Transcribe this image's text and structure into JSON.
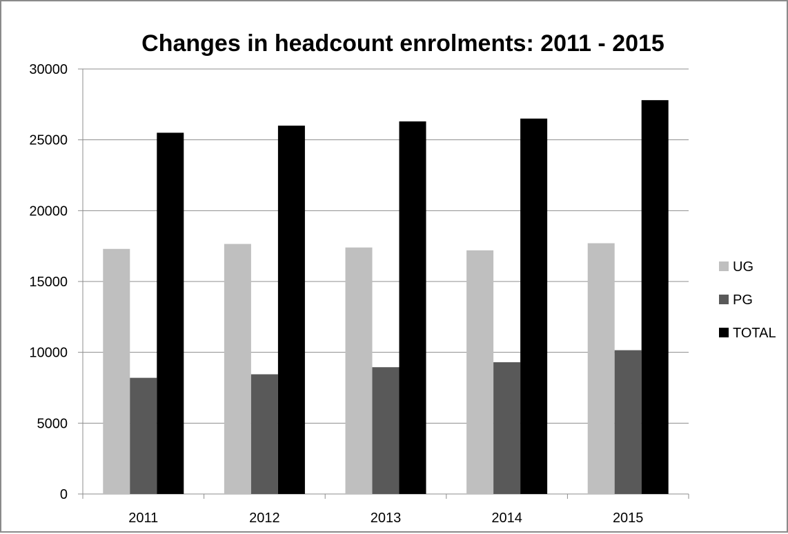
{
  "chart_data": {
    "type": "bar",
    "title": "Changes in headcount enrolments: 2011 - 2015",
    "xlabel": "",
    "ylabel": "",
    "categories": [
      "2011",
      "2012",
      "2013",
      "2014",
      "2015"
    ],
    "series": [
      {
        "name": "UG",
        "color": "#bfbfbf",
        "values": [
          17300,
          17650,
          17400,
          17200,
          17700
        ]
      },
      {
        "name": "PG",
        "color": "#595959",
        "values": [
          8200,
          8450,
          8950,
          9300,
          10150
        ]
      },
      {
        "name": "TOTAL",
        "color": "#000000",
        "values": [
          25500,
          26000,
          26300,
          26500,
          27800
        ]
      }
    ],
    "ylim": [
      0,
      30000
    ],
    "yticks": [
      0,
      5000,
      10000,
      15000,
      20000,
      25000,
      30000
    ],
    "grid": "horizontal major gridlines",
    "legend_position": "right"
  }
}
